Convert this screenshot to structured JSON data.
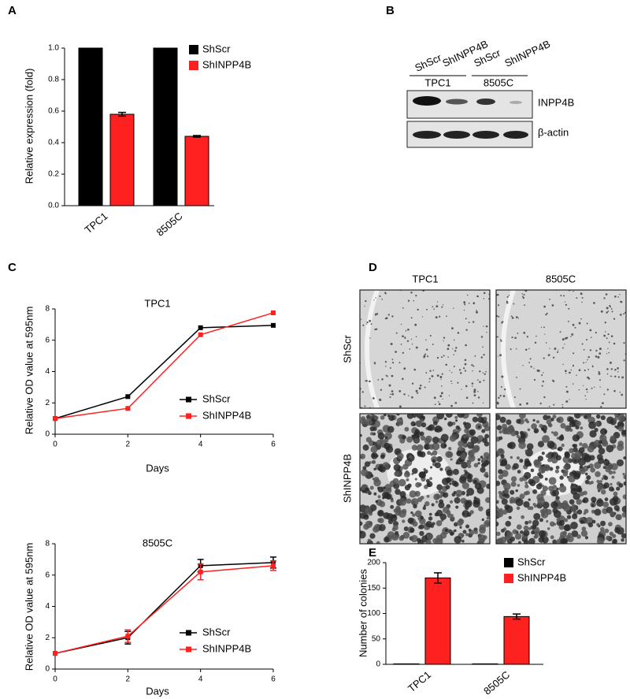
{
  "chart_data": [
    {
      "panel": "A",
      "type": "bar",
      "y_label": "Relative expression (fold)",
      "categories": [
        "TPC1",
        "8505C"
      ],
      "series": [
        {
          "name": "ShScr",
          "color": "#000000",
          "values": [
            1,
            1
          ]
        },
        {
          "name": "ShINPP4B",
          "color": "#ff2020",
          "values": [
            0.58,
            0.44
          ],
          "errors": [
            0.012,
            0.005
          ]
        }
      ],
      "ylim": [
        0,
        1
      ],
      "yticks": [
        {
          "value": 0,
          "label": "0.0"
        },
        {
          "value": 0.2,
          "label": "0.2"
        },
        {
          "value": 0.4,
          "label": "0.4"
        },
        {
          "value": 0.6,
          "label": "0.6"
        },
        {
          "value": 0.8,
          "label": "0.8"
        },
        {
          "value": 1,
          "label": "1.0"
        }
      ]
    },
    {
      "panel": "C",
      "type": "line",
      "title": "TPC1",
      "x_label": "Days",
      "y_label": "Relative OD value at 595nm",
      "x": [
        0,
        2,
        4,
        6
      ],
      "xlim": [
        0,
        6
      ],
      "xticks": [
        0,
        2,
        4,
        6
      ],
      "ylim": [
        0,
        8
      ],
      "yticks": [
        0,
        2,
        4,
        6,
        8
      ],
      "series": [
        {
          "name": "ShScr",
          "color": "#000000",
          "values": [
            1,
            2.4,
            6.8,
            6.95
          ]
        },
        {
          "name": "ShINPP4B",
          "color": "#ff2020",
          "values": [
            1,
            1.65,
            6.35,
            7.75
          ]
        }
      ]
    },
    {
      "type": "line",
      "title": "8505C",
      "x_label": "Days",
      "y_label": "Relative OD value at 595nm",
      "x": [
        0,
        2,
        4,
        6
      ],
      "xlim": [
        0,
        6
      ],
      "xticks": [
        0,
        2,
        4,
        6
      ],
      "ylim": [
        0,
        8
      ],
      "yticks": [
        0,
        2,
        4,
        6,
        8
      ],
      "series": [
        {
          "name": "ShScr",
          "color": "#000000",
          "values": [
            1,
            2.0,
            6.6,
            6.8
          ],
          "errors": [
            0,
            0.4,
            0.4,
            0.35
          ]
        },
        {
          "name": "ShINPP4B",
          "color": "#ff2020",
          "values": [
            1,
            2.1,
            6.2,
            6.6
          ],
          "errors": [
            0,
            0.4,
            0.5,
            0.3
          ]
        }
      ]
    },
    {
      "panel": "E",
      "type": "bar",
      "y_label": "Number of colonies",
      "categories": [
        "TPC1",
        "8505C"
      ],
      "series": [
        {
          "name": "ShScr",
          "color": "#000000",
          "values": [
            1,
            1
          ]
        },
        {
          "name": "ShINPP4B",
          "color": "#ff2020",
          "values": [
            170,
            94
          ],
          "errors": [
            10,
            5
          ]
        }
      ],
      "ylim": [
        0,
        200
      ],
      "yticks": [
        0,
        50,
        100,
        150,
        200
      ]
    }
  ],
  "blot": {
    "panel": "B",
    "lanes": [
      "ShScr",
      "ShINPP4B",
      "ShScr",
      "ShINPP4B"
    ],
    "groups": [
      "TPC1",
      "8505C"
    ],
    "bands": [
      "INPP4B",
      "β-actin"
    ]
  },
  "colony_images": {
    "panel": "D",
    "columns": [
      "TPC1",
      "8505C"
    ],
    "rows": [
      "ShScr",
      "ShINPP4B"
    ]
  }
}
